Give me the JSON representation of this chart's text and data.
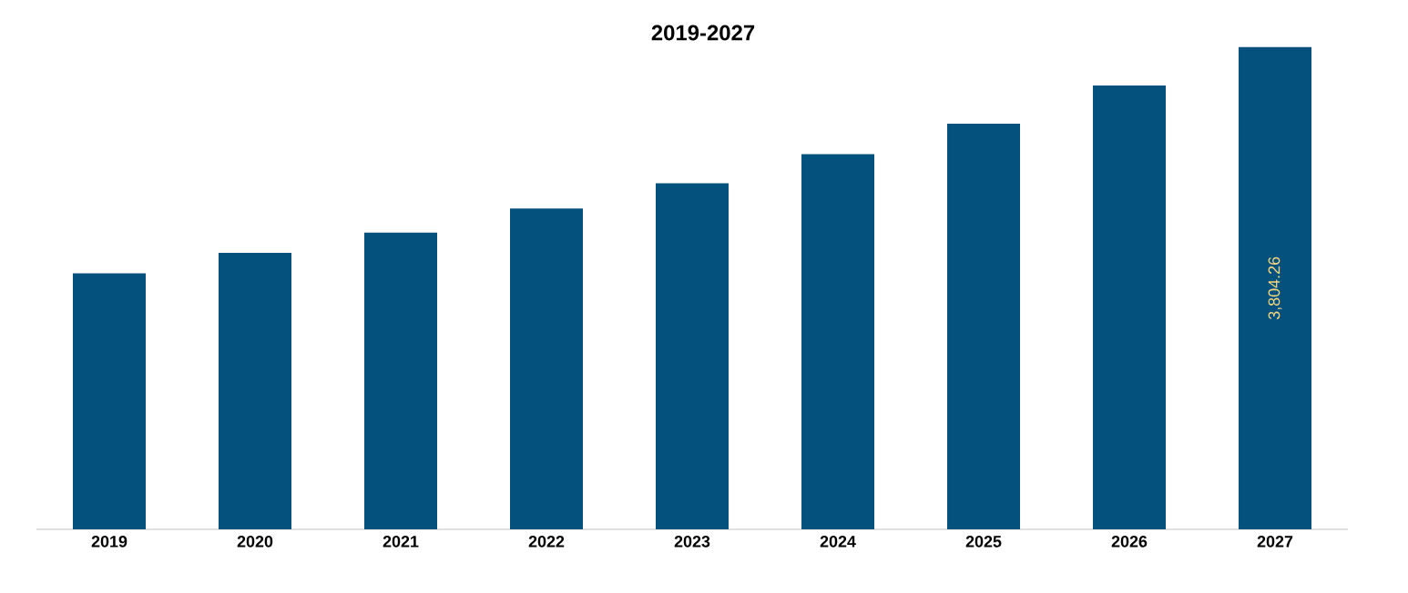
{
  "chart_data": {
    "type": "bar",
    "title": "2019-2027",
    "categories": [
      "2019",
      "2020",
      "2021",
      "2022",
      "2023",
      "2024",
      "2025",
      "2026",
      "2027"
    ],
    "values": [
      2020,
      2180,
      2340,
      2530,
      2730,
      2960,
      3200,
      3500,
      3804.26
    ],
    "value_labels": [
      null,
      null,
      null,
      null,
      null,
      null,
      null,
      null,
      "3,804.26"
    ],
    "color": "#05517e",
    "tick_labels": "x"
  }
}
